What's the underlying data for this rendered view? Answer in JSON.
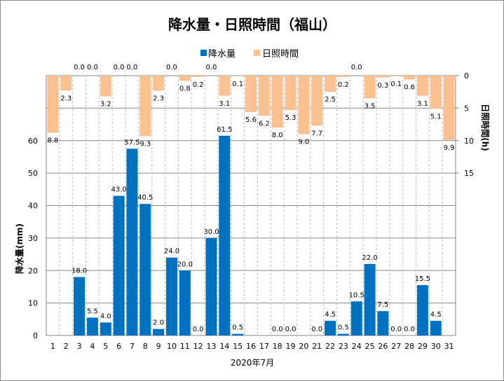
{
  "chart_data": {
    "type": "bar",
    "title": "降水量・日照時間（福山）",
    "xlabel": "2020年7月",
    "ylabel": "降水量(mm)",
    "y2label": "日照時間(h)",
    "legend_position": "top",
    "ylim": [
      0,
      80
    ],
    "y_ticks": [
      0,
      10,
      20,
      30,
      40,
      50,
      60
    ],
    "y2lim": [
      0,
      40
    ],
    "y2_reversed": true,
    "y2_ticks": [
      0,
      5,
      10,
      15
    ],
    "grid": true,
    "categories": [
      "1",
      "2",
      "3",
      "4",
      "5",
      "6",
      "7",
      "8",
      "9",
      "10",
      "11",
      "12",
      "13",
      "14",
      "15",
      "16",
      "17",
      "18",
      "19",
      "20",
      "21",
      "22",
      "23",
      "24",
      "25",
      "26",
      "27",
      "28",
      "29",
      "30",
      "31"
    ],
    "series": [
      {
        "name": "降水量",
        "axis": "left",
        "color": "#0070C0",
        "values": [
          null,
          null,
          18.0,
          5.5,
          4.0,
          43.0,
          57.5,
          40.5,
          2.0,
          24.0,
          20.0,
          0.0,
          30.0,
          61.5,
          0.5,
          null,
          null,
          0.0,
          0.0,
          null,
          0.0,
          4.5,
          0.5,
          10.5,
          22.0,
          7.5,
          0.0,
          0.0,
          15.5,
          4.5,
          null
        ]
      },
      {
        "name": "日照時間",
        "axis": "right",
        "color": "#FAC090",
        "values": [
          8.8,
          2.3,
          0.0,
          0.0,
          3.2,
          0.0,
          0.0,
          9.3,
          2.3,
          0.0,
          0.8,
          0.2,
          0.0,
          3.1,
          0.1,
          5.6,
          6.2,
          8.0,
          5.3,
          9.0,
          7.7,
          2.5,
          0.2,
          0.0,
          3.5,
          0.3,
          0.1,
          0.6,
          3.1,
          5.1,
          9.9
        ]
      }
    ]
  }
}
